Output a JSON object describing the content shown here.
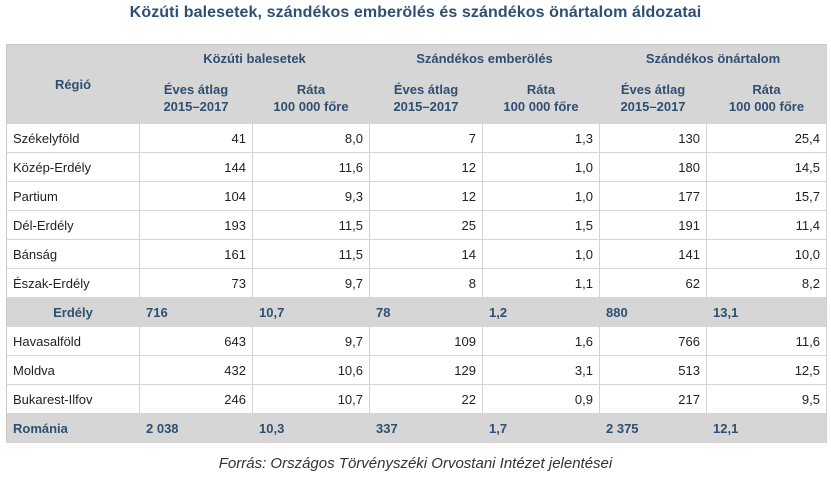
{
  "title": "Közúti balesetek, szándékos emberölés és szándékos önártalom áldozatai",
  "header": {
    "region": "Régió",
    "groups": [
      "Közúti balesetek",
      "Szándékos emberölés",
      "Szándékos önártalom"
    ],
    "sub_avg_line1": "Éves átlag",
    "sub_avg_line2": "2015–2017",
    "sub_rate_line1": "Ráta",
    "sub_rate_line2": "100 000 főre"
  },
  "rows": [
    {
      "region": "Székelyföld",
      "v": [
        "41",
        "8,0",
        "7",
        "1,3",
        "130",
        "25,4"
      ]
    },
    {
      "region": "Közép-Erdély",
      "v": [
        "144",
        "11,6",
        "12",
        "1,0",
        "180",
        "14,5"
      ]
    },
    {
      "region": "Partium",
      "v": [
        "104",
        "9,3",
        "12",
        "1,0",
        "177",
        "15,7"
      ]
    },
    {
      "region": "Dél-Erdély",
      "v": [
        "193",
        "11,5",
        "25",
        "1,5",
        "191",
        "11,4"
      ]
    },
    {
      "region": "Bánság",
      "v": [
        "161",
        "11,5",
        "14",
        "1,0",
        "141",
        "10,0"
      ]
    },
    {
      "region": "Észak-Erdély",
      "v": [
        "73",
        "9,7",
        "8",
        "1,1",
        "62",
        "8,2"
      ]
    }
  ],
  "erdely": {
    "region": "Erdély",
    "v": [
      "716",
      "10,7",
      "78",
      "1,2",
      "880",
      "13,1"
    ]
  },
  "rows2": [
    {
      "region": "Havasalföld",
      "v": [
        "643",
        "9,7",
        "109",
        "1,6",
        "766",
        "11,6"
      ]
    },
    {
      "region": "Moldva",
      "v": [
        "432",
        "10,6",
        "129",
        "3,1",
        "513",
        "12,5"
      ]
    },
    {
      "region": "Bukarest-Ilfov",
      "v": [
        "246",
        "10,7",
        "22",
        "0,9",
        "217",
        "9,5"
      ]
    }
  ],
  "romania": {
    "region": "Románia",
    "v": [
      "2 038",
      "10,3",
      "337",
      "1,7",
      "2 375",
      "12,1"
    ]
  },
  "source": "Forrás: Országos Törvényszéki Orvostani Intézet jelentései"
}
